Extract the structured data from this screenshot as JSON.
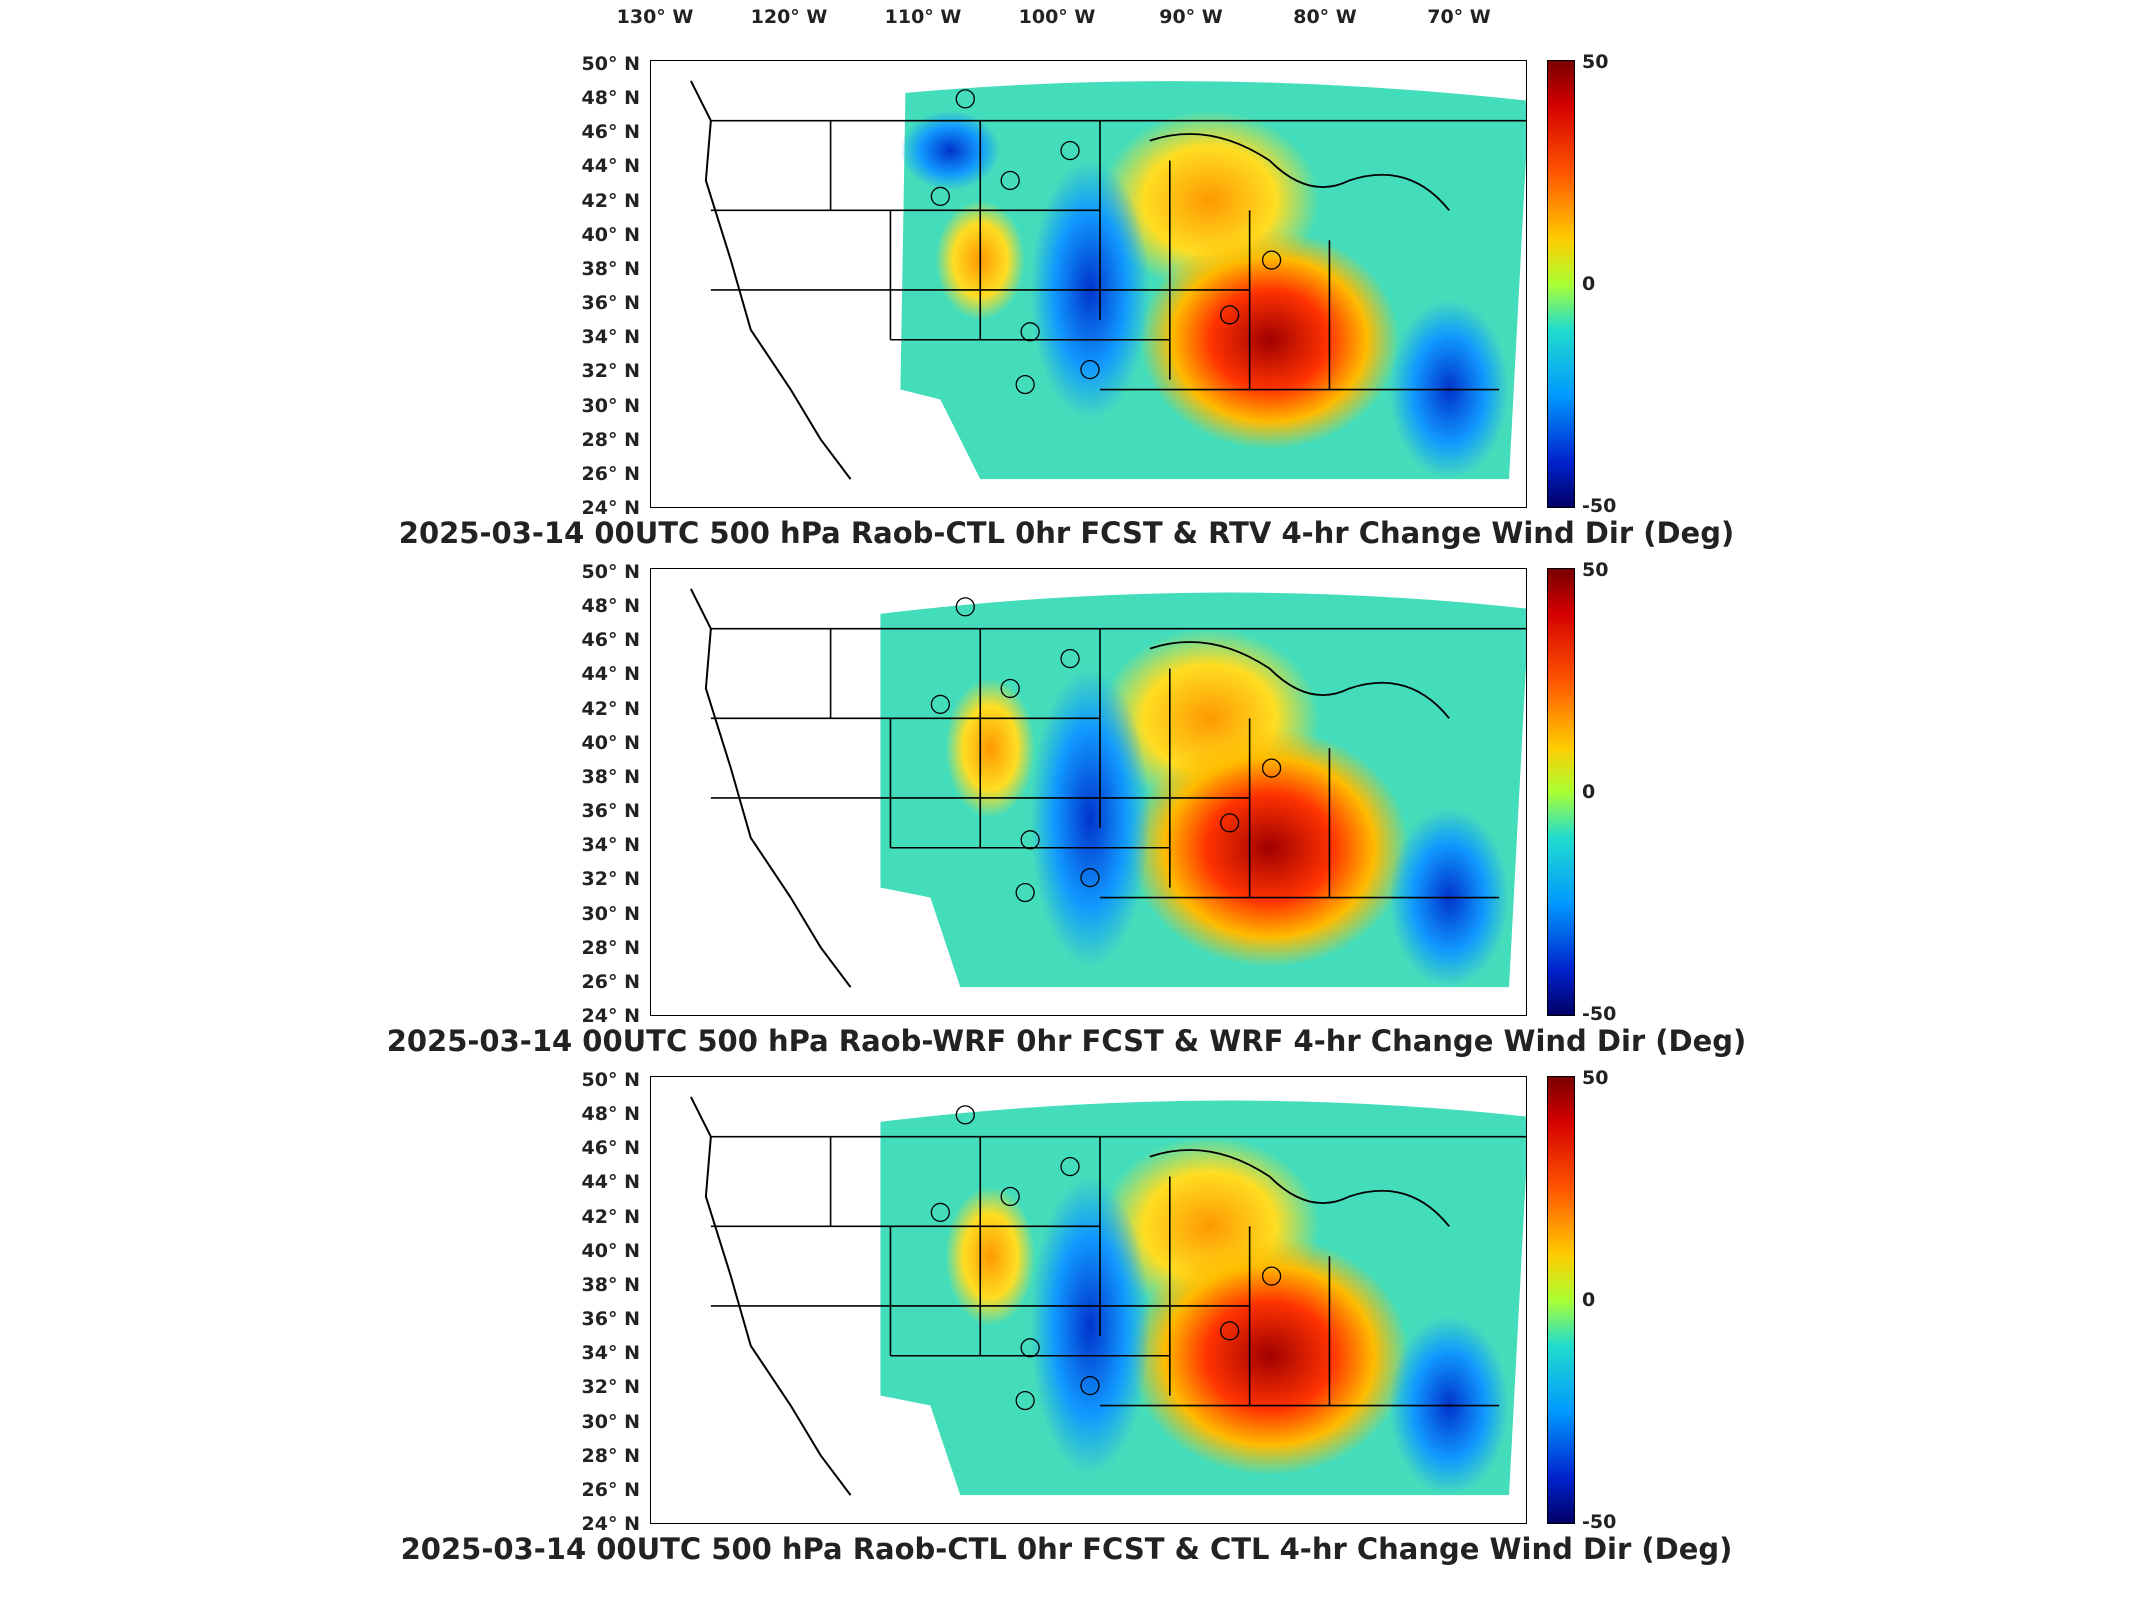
{
  "longitude_labels": [
    "130° W",
    "120° W",
    "110° W",
    "100° W",
    "90° W",
    "80° W",
    "70° W"
  ],
  "latitude_labels": [
    "50° N",
    "48° N",
    "46° N",
    "44° N",
    "42° N",
    "40° N",
    "38° N",
    "36° N",
    "34° N",
    "32° N",
    "30° N",
    "28° N",
    "26° N",
    "24° N"
  ],
  "colorbar": {
    "max_label": "50",
    "mid_label": "0",
    "min_label": "-50",
    "colors": [
      "#7a0000",
      "#d40000",
      "#ff5500",
      "#ffcc00",
      "#aaff33",
      "#22ddcc",
      "#0099ff",
      "#0022cc",
      "#000066"
    ]
  },
  "panels": [
    {
      "title": "2025-03-14 00UTC 500 hPa Raob-CTL 0hr FCST & RTV 4-hr Change Wind Dir (Deg)"
    },
    {
      "title": "2025-03-14 00UTC 500 hPa Raob-WRF 0hr FCST & WRF 4-hr Change Wind Dir (Deg)"
    },
    {
      "title": "2025-03-14 00UTC 500 hPa Raob-CTL 0hr FCST & CTL 4-hr Change Wind Dir (Deg)"
    }
  ]
}
